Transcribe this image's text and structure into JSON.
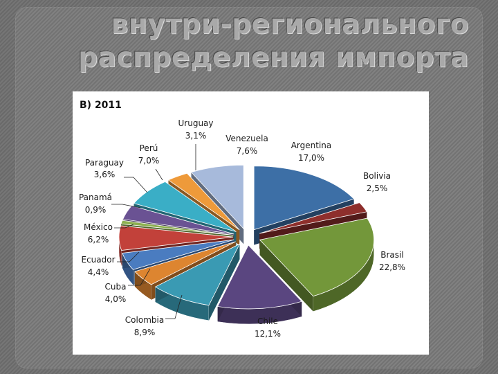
{
  "slide": {
    "title_line1": "внутри-регионального",
    "title_line2": "распределения импорта"
  },
  "chart_data": {
    "type": "pie",
    "title": "B) 2011",
    "categories": [
      "Argentina",
      "Bolivia",
      "Brasil",
      "Chile",
      "Colombia",
      "Cuba",
      "Ecuador",
      "México",
      "Panamá",
      "Paraguay",
      "Perú",
      "Uruguay",
      "Venezuela"
    ],
    "values": [
      17.0,
      2.5,
      22.8,
      12.1,
      8.9,
      4.0,
      4.4,
      6.2,
      0.9,
      3.6,
      7.0,
      3.1,
      7.6
    ],
    "value_labels": [
      "17,0%",
      "2,5%",
      "22,8%",
      "12,1%",
      "8,9%",
      "4,0%",
      "4,4%",
      "6,2%",
      "0,9%",
      "3,6%",
      "7,0%",
      "3,1%",
      "7,6%"
    ],
    "colors": [
      "#3d6fa6",
      "#8e2f2c",
      "#73973a",
      "#5a4680",
      "#3a9ab3",
      "#dd8530",
      "#4a7cc0",
      "#c2413a",
      "#8db050",
      "#6a5293",
      "#3aaec6",
      "#ee9a3a",
      "#a7badb"
    ],
    "exploded": true,
    "legend": "none"
  }
}
